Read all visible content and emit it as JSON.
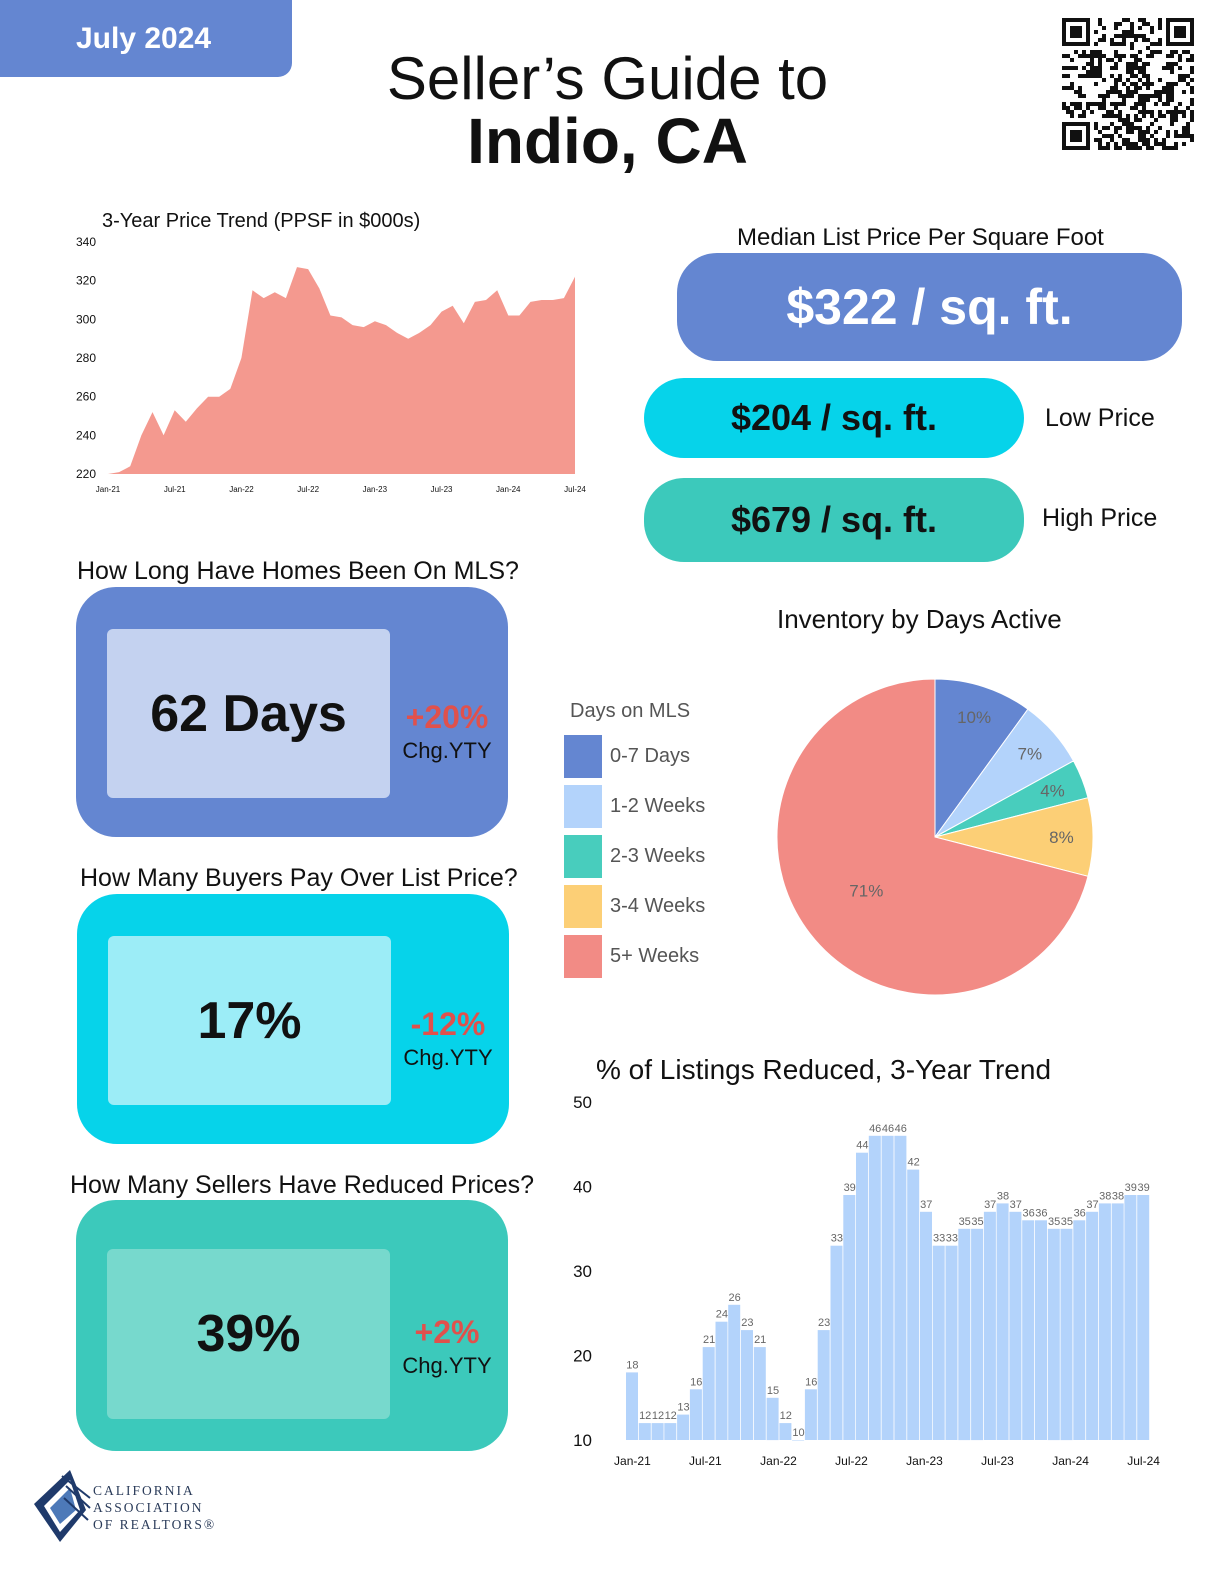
{
  "header": {
    "date": "July 2024",
    "title_line1": "Seller’s Guide to",
    "title_line2": "Indio, CA"
  },
  "price_trend": {
    "chart_data": {
      "type": "area",
      "title": "3-Year Price Trend (PPSF in $000s)",
      "x_tick_labels": [
        "Jan-21",
        "Jul-21",
        "Jan-22",
        "Jul-22",
        "Jan-23",
        "Jul-23",
        "Jan-24",
        "Jul-24"
      ],
      "y_tick_labels": [
        "220",
        "240",
        "260",
        "280",
        "300",
        "320",
        "340"
      ],
      "ylim": [
        220,
        340
      ],
      "color": "#f4998f",
      "values": [
        218,
        221,
        224,
        240,
        252,
        240,
        253,
        247,
        254,
        260,
        260,
        264,
        280,
        315,
        311,
        314,
        311,
        327,
        326,
        316,
        302,
        301,
        297,
        296,
        299,
        297,
        293,
        290,
        293,
        297,
        304,
        307,
        298,
        309,
        310,
        315,
        302,
        302,
        309,
        310,
        310,
        311,
        322
      ]
    }
  },
  "median_price": {
    "title": "Median List Price Per Square Foot",
    "median": "$322 / sq. ft.",
    "low": "$204 / sq. ft.",
    "low_label": "Low Price",
    "high": "$679 / sq. ft.",
    "high_label": "High Price",
    "colors": {
      "median": "#6486d1",
      "low": "#06d3ea",
      "high": "#3cc9bb"
    }
  },
  "stats": {
    "mls_days": {
      "title": "How Long Have Homes Been On MLS?",
      "value": "62 Days",
      "change": "+20%",
      "change_label": "Chg.YTY"
    },
    "over_list": {
      "title": "How Many Buyers Pay Over List Price?",
      "value": "17%",
      "change": "-12%",
      "change_label": "Chg.YTY"
    },
    "reduced": {
      "title": "How Many Sellers Have Reduced Prices?",
      "value": "39%",
      "change": "+2%",
      "change_label": "Chg.YTY"
    }
  },
  "inventory": {
    "chart_data": {
      "type": "pie",
      "title": "Inventory by Days Active",
      "legend_title": "Days on MLS",
      "slices": [
        {
          "label": "0-7 Days",
          "value": 10,
          "display": "10%",
          "color": "#6486d1"
        },
        {
          "label": "1-2 Weeks",
          "value": 7,
          "display": "7%",
          "color": "#b3d3fb"
        },
        {
          "label": "2-3 Weeks",
          "value": 4,
          "display": "4%",
          "color": "#48cdbd"
        },
        {
          "label": "3-4 Weeks",
          "value": 8,
          "display": "8%",
          "color": "#fccf76"
        },
        {
          "label": "5+ Weeks",
          "value": 71,
          "display": "71%",
          "color": "#f28b85"
        }
      ]
    }
  },
  "reduced_trend": {
    "chart_data": {
      "type": "bar",
      "title": "% of Listings Reduced, 3-Year Trend",
      "x_tick_labels": [
        "Jan-21",
        "Jul-21",
        "Jan-22",
        "Jul-22",
        "Jan-23",
        "Jul-23",
        "Jan-24",
        "Jul-24"
      ],
      "y_tick_labels": [
        "10",
        "20",
        "30",
        "40",
        "50"
      ],
      "ylim": [
        10,
        50
      ],
      "color": "#b3d3fb",
      "values": [
        18,
        12,
        12,
        12,
        13,
        16,
        21,
        24,
        26,
        23,
        21,
        15,
        12,
        10,
        16,
        23,
        33,
        39,
        44,
        46,
        46,
        46,
        42,
        37,
        33,
        33,
        35,
        35,
        37,
        38,
        37,
        36,
        36,
        35,
        35,
        36,
        37,
        38,
        38,
        39,
        39
      ]
    }
  },
  "footer": {
    "logo_line1": "CALIFORNIA",
    "logo_line2": "ASSOCIATION",
    "logo_line3": "OF REALTORS®"
  }
}
